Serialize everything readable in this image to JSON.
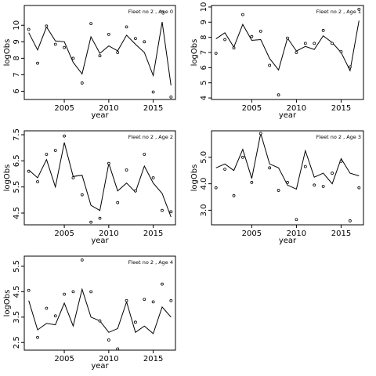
{
  "chart_data": [
    {
      "type": "line",
      "title": "Fleet no 2 , Age 0",
      "xlabel": "year",
      "ylabel": "logObs",
      "xlim": [
        2000.5,
        2017.5
      ],
      "ylim": [
        5.5,
        11.2
      ],
      "xticks": [
        2005,
        2010,
        2015
      ],
      "yticks": [
        6,
        7,
        8,
        9,
        10
      ],
      "ytick_rotation": 90,
      "series": [
        {
          "role": "line",
          "x": [
            2001,
            2002,
            2003,
            2004,
            2005,
            2006,
            2007,
            2008,
            2009,
            2010,
            2011,
            2012,
            2013,
            2014,
            2015,
            2016,
            2017
          ],
          "values": [
            9.55,
            8.5,
            9.9,
            9.05,
            9.0,
            7.75,
            7.05,
            9.3,
            8.3,
            8.75,
            8.45,
            9.4,
            8.85,
            8.35,
            6.95,
            10.2,
            6.35
          ]
        },
        {
          "role": "points",
          "x": [
            2001,
            2002,
            2003,
            2004,
            2005,
            2006,
            2007,
            2008,
            2009,
            2010,
            2011,
            2012,
            2013,
            2014,
            2015,
            2016,
            2017
          ],
          "values": [
            9.75,
            7.7,
            9.95,
            8.85,
            8.65,
            8.0,
            6.5,
            10.1,
            8.15,
            9.45,
            8.35,
            9.9,
            9.2,
            9.0,
            5.95,
            10.8,
            5.65
          ]
        }
      ]
    },
    {
      "type": "line",
      "title": "Fleet no 2 , Age 1",
      "xlabel": "year",
      "ylabel": "logObs",
      "xlim": [
        2000.5,
        2017.5
      ],
      "ylim": [
        3.9,
        10.1
      ],
      "xticks": [
        2005,
        2010,
        2015
      ],
      "yticks": [
        4,
        5,
        6,
        7,
        8,
        9,
        10
      ],
      "ytick_rotation": 90,
      "series": [
        {
          "role": "line",
          "x": [
            2001,
            2002,
            2003,
            2004,
            2005,
            2006,
            2007,
            2008,
            2009,
            2010,
            2011,
            2012,
            2013,
            2014,
            2015,
            2016,
            2017
          ],
          "values": [
            7.9,
            8.3,
            7.35,
            8.85,
            7.8,
            7.85,
            6.6,
            5.85,
            7.95,
            7.1,
            7.4,
            7.2,
            8.1,
            7.65,
            7.0,
            5.8,
            9.1
          ]
        },
        {
          "role": "points",
          "x": [
            2001,
            2002,
            2003,
            2004,
            2005,
            2006,
            2007,
            2008,
            2009,
            2010,
            2011,
            2012,
            2013,
            2014,
            2015,
            2016,
            2017
          ],
          "values": [
            6.95,
            7.85,
            7.3,
            9.5,
            8.05,
            8.4,
            6.15,
            4.2,
            7.95,
            7.0,
            7.6,
            7.6,
            8.45,
            7.6,
            7.05,
            6.05,
            9.85
          ]
        }
      ]
    },
    {
      "type": "line",
      "title": "Fleet no 2 , Age 2",
      "xlabel": "year",
      "ylabel": "logObs",
      "xlim": [
        2000.5,
        2017.5
      ],
      "ylim": [
        4.05,
        7.65
      ],
      "xticks": [
        2005,
        2010,
        2015
      ],
      "yticks": [
        4.5,
        5.5,
        6.5,
        7.5
      ],
      "ytick_rotation": 90,
      "series": [
        {
          "role": "line",
          "x": [
            2001,
            2002,
            2003,
            2004,
            2005,
            2006,
            2007,
            2008,
            2009,
            2010,
            2011,
            2012,
            2013,
            2014,
            2015,
            2016,
            2017
          ],
          "values": [
            6.15,
            5.85,
            6.55,
            5.5,
            7.2,
            5.9,
            5.95,
            4.8,
            4.6,
            6.4,
            5.35,
            5.65,
            5.3,
            6.3,
            5.65,
            5.25,
            4.35
          ]
        },
        {
          "role": "points",
          "x": [
            2001,
            2002,
            2003,
            2004,
            2005,
            2006,
            2007,
            2008,
            2009,
            2010,
            2011,
            2012,
            2013,
            2014,
            2015,
            2016,
            2017
          ],
          "values": [
            6.1,
            5.7,
            6.75,
            6.9,
            7.45,
            5.85,
            5.2,
            4.15,
            4.3,
            6.4,
            4.9,
            6.15,
            5.35,
            6.75,
            5.85,
            4.6,
            4.55
          ]
        }
      ]
    },
    {
      "type": "line",
      "title": "Fleet no 2 , Age 3",
      "xlabel": "year",
      "ylabel": "logObs",
      "xlim": [
        2000.5,
        2017.5
      ],
      "ylim": [
        2.45,
        6.0
      ],
      "xticks": [
        2005,
        2010,
        2015
      ],
      "yticks": [
        3.0,
        4.0,
        5.0
      ],
      "ytick_rotation": 90,
      "series": [
        {
          "role": "line",
          "x": [
            2001,
            2002,
            2003,
            2004,
            2005,
            2006,
            2007,
            2008,
            2009,
            2010,
            2011,
            2012,
            2013,
            2014,
            2015,
            2016,
            2017
          ],
          "values": [
            4.6,
            4.75,
            4.5,
            5.3,
            4.2,
            5.9,
            4.75,
            4.6,
            3.95,
            3.8,
            5.25,
            4.25,
            4.4,
            4.0,
            4.95,
            4.4,
            4.3
          ]
        },
        {
          "role": "points",
          "x": [
            2001,
            2002,
            2003,
            2004,
            2005,
            2006,
            2007,
            2008,
            2009,
            2010,
            2011,
            2012,
            2013,
            2014,
            2015,
            2016,
            2017
          ],
          "values": [
            3.85,
            4.55,
            3.55,
            5.0,
            4.05,
            5.9,
            4.6,
            3.75,
            4.05,
            2.65,
            4.65,
            3.95,
            3.9,
            4.4,
            4.85,
            2.6,
            3.85
          ]
        }
      ]
    },
    {
      "type": "line",
      "title": "Fleet no 2 , Age 4",
      "xlabel": "year",
      "ylabel": "logObs",
      "xlim": [
        2000.5,
        2017.5
      ],
      "ylim": [
        2.2,
        5.9
      ],
      "xticks": [
        2005,
        2010,
        2015
      ],
      "yticks": [
        2.5,
        3.5,
        4.5,
        5.5
      ],
      "ytick_rotation": 90,
      "series": [
        {
          "role": "line",
          "x": [
            2001,
            2002,
            2003,
            2004,
            2005,
            2006,
            2007,
            2008,
            2009,
            2010,
            2011,
            2012,
            2013,
            2014,
            2015,
            2016,
            2017
          ],
          "values": [
            4.15,
            3.0,
            3.25,
            3.2,
            4.05,
            3.15,
            4.6,
            3.5,
            3.35,
            2.9,
            3.05,
            4.1,
            2.9,
            3.15,
            2.85,
            3.9,
            3.5
          ]
        },
        {
          "role": "points",
          "x": [
            2001,
            2002,
            2003,
            2004,
            2005,
            2006,
            2007,
            2008,
            2009,
            2010,
            2011,
            2012,
            2013,
            2014,
            2015,
            2016,
            2017
          ],
          "values": [
            4.55,
            2.7,
            3.85,
            3.55,
            4.4,
            4.5,
            5.75,
            4.5,
            3.35,
            2.6,
            2.25,
            4.15,
            3.3,
            4.2,
            4.1,
            4.8,
            4.15
          ]
        }
      ]
    }
  ]
}
